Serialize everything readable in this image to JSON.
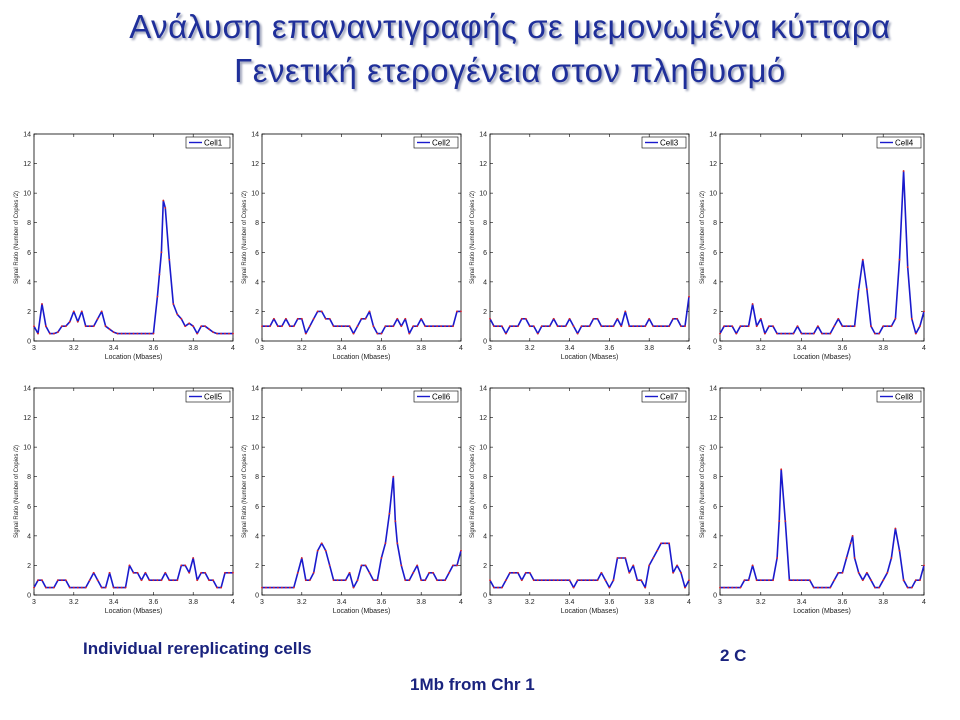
{
  "slide": {
    "title_line1": "Ανάλυση επαναντιγραφής σε μεμονωμένα κύτταρα",
    "title_line2": "Γενετική ετερογένεια στον πληθυσμό",
    "caption_cells": "Individual  rereplicating cells",
    "caption_2c": "2 C",
    "caption_region": "1Mb from Chr 1"
  },
  "colors": {
    "title": "#1f2f9a",
    "line": "#1a1acc",
    "marker": "#e02020",
    "caption": "#1a237e"
  },
  "chart_data": [
    {
      "type": "line",
      "legend": "Cell1",
      "xlabel": "Location (Mbases)",
      "ylabel": "Signal Ratio (Number of Copies /2)",
      "xlim": [
        3,
        4
      ],
      "ylim": [
        0,
        14
      ],
      "xticks": [
        "3",
        "3.2",
        "3.4",
        "3.6",
        "3.8",
        "4"
      ],
      "yticks": [
        "0",
        "2",
        "4",
        "6",
        "8",
        "10",
        "12",
        "14"
      ],
      "x": [
        3.0,
        3.02,
        3.04,
        3.06,
        3.08,
        3.1,
        3.12,
        3.14,
        3.16,
        3.18,
        3.2,
        3.22,
        3.24,
        3.26,
        3.28,
        3.3,
        3.32,
        3.34,
        3.36,
        3.38,
        3.4,
        3.42,
        3.44,
        3.46,
        3.48,
        3.5,
        3.52,
        3.54,
        3.56,
        3.58,
        3.6,
        3.62,
        3.63,
        3.64,
        3.65,
        3.66,
        3.68,
        3.7,
        3.72,
        3.74,
        3.76,
        3.78,
        3.8,
        3.82,
        3.84,
        3.86,
        3.88,
        3.9,
        3.92,
        3.94,
        3.96,
        3.98,
        4.0
      ],
      "y": [
        1.0,
        0.5,
        2.5,
        1.0,
        0.5,
        0.5,
        0.6,
        1.0,
        1.0,
        1.3,
        2.0,
        1.3,
        2.0,
        1.0,
        1.0,
        1.0,
        1.5,
        2.0,
        1.0,
        0.8,
        0.6,
        0.5,
        0.5,
        0.5,
        0.5,
        0.5,
        0.5,
        0.5,
        0.5,
        0.5,
        0.5,
        3.0,
        4.5,
        6.0,
        9.5,
        9.0,
        5.5,
        2.5,
        1.8,
        1.5,
        1.0,
        1.2,
        1.0,
        0.5,
        1.0,
        1.0,
        0.8,
        0.6,
        0.5,
        0.5,
        0.5,
        0.5,
        0.5
      ]
    },
    {
      "type": "line",
      "legend": "Cell2",
      "xlabel": "Location (Mbases)",
      "ylabel": "Signal Ratio (Number of Copies /2)",
      "xlim": [
        3,
        4
      ],
      "ylim": [
        0,
        14
      ],
      "xticks": [
        "3",
        "3.2",
        "3.4",
        "3.6",
        "3.8",
        "4"
      ],
      "yticks": [
        "0",
        "2",
        "4",
        "6",
        "8",
        "10",
        "12",
        "14"
      ],
      "x": [
        3.0,
        3.02,
        3.04,
        3.06,
        3.08,
        3.1,
        3.12,
        3.14,
        3.16,
        3.18,
        3.2,
        3.22,
        3.24,
        3.26,
        3.28,
        3.3,
        3.32,
        3.34,
        3.36,
        3.38,
        3.4,
        3.42,
        3.44,
        3.46,
        3.48,
        3.5,
        3.52,
        3.54,
        3.56,
        3.58,
        3.6,
        3.62,
        3.64,
        3.66,
        3.68,
        3.7,
        3.72,
        3.74,
        3.76,
        3.78,
        3.8,
        3.82,
        3.84,
        3.86,
        3.88,
        3.9,
        3.92,
        3.94,
        3.96,
        3.98,
        4.0
      ],
      "y": [
        1.0,
        1.0,
        1.0,
        1.5,
        1.0,
        1.0,
        1.5,
        1.0,
        1.0,
        1.5,
        1.5,
        0.5,
        1.0,
        1.5,
        2.0,
        2.0,
        1.5,
        1.5,
        1.0,
        1.0,
        1.0,
        1.0,
        1.0,
        0.5,
        1.0,
        1.5,
        1.5,
        2.0,
        1.0,
        0.5,
        0.5,
        1.0,
        1.0,
        1.0,
        1.5,
        1.0,
        1.5,
        0.5,
        1.0,
        1.0,
        1.5,
        1.0,
        1.0,
        1.0,
        1.0,
        1.0,
        1.0,
        1.0,
        1.0,
        2.0,
        2.0
      ]
    },
    {
      "type": "line",
      "legend": "Cell3",
      "xlabel": "Location (Mbases)",
      "ylabel": "Signal Ratio (Number of Copies /2)",
      "xlim": [
        3,
        4
      ],
      "ylim": [
        0,
        14
      ],
      "xticks": [
        "3",
        "3.2",
        "3.4",
        "3.6",
        "3.8",
        "4"
      ],
      "yticks": [
        "0",
        "2",
        "4",
        "6",
        "8",
        "10",
        "12",
        "14"
      ],
      "x": [
        3.0,
        3.02,
        3.04,
        3.06,
        3.08,
        3.1,
        3.12,
        3.14,
        3.16,
        3.18,
        3.2,
        3.22,
        3.24,
        3.26,
        3.28,
        3.3,
        3.32,
        3.34,
        3.36,
        3.38,
        3.4,
        3.42,
        3.44,
        3.46,
        3.48,
        3.5,
        3.52,
        3.54,
        3.56,
        3.58,
        3.6,
        3.62,
        3.64,
        3.66,
        3.68,
        3.7,
        3.72,
        3.74,
        3.76,
        3.78,
        3.8,
        3.82,
        3.84,
        3.86,
        3.88,
        3.9,
        3.92,
        3.94,
        3.96,
        3.98,
        4.0
      ],
      "y": [
        1.5,
        1.0,
        1.0,
        1.0,
        0.5,
        1.0,
        1.0,
        1.0,
        1.5,
        1.5,
        1.0,
        1.0,
        0.5,
        1.0,
        1.0,
        1.0,
        1.5,
        1.0,
        1.0,
        1.0,
        1.5,
        1.0,
        0.5,
        1.0,
        1.0,
        1.0,
        1.5,
        1.5,
        1.0,
        1.0,
        1.0,
        1.0,
        1.5,
        1.0,
        2.0,
        1.0,
        1.0,
        1.0,
        1.0,
        1.0,
        1.5,
        1.0,
        1.0,
        1.0,
        1.0,
        1.0,
        1.5,
        1.5,
        1.0,
        1.0,
        3.0
      ]
    },
    {
      "type": "line",
      "legend": "Cell4",
      "xlabel": "Location (Mbases)",
      "ylabel": "Signal Ratio (Number of Copies /2)",
      "xlim": [
        3,
        4
      ],
      "ylim": [
        0,
        14
      ],
      "xticks": [
        "3",
        "3.2",
        "3.4",
        "3.6",
        "3.8",
        "4"
      ],
      "yticks": [
        "0",
        "2",
        "4",
        "6",
        "8",
        "10",
        "12",
        "14"
      ],
      "x": [
        3.0,
        3.02,
        3.04,
        3.06,
        3.08,
        3.1,
        3.12,
        3.14,
        3.16,
        3.18,
        3.2,
        3.22,
        3.24,
        3.26,
        3.28,
        3.3,
        3.32,
        3.34,
        3.36,
        3.38,
        3.4,
        3.42,
        3.44,
        3.46,
        3.48,
        3.5,
        3.52,
        3.54,
        3.56,
        3.58,
        3.6,
        3.62,
        3.64,
        3.66,
        3.68,
        3.7,
        3.72,
        3.74,
        3.76,
        3.78,
        3.8,
        3.82,
        3.84,
        3.86,
        3.88,
        3.9,
        3.92,
        3.94,
        3.96,
        3.98,
        4.0
      ],
      "y": [
        0.5,
        1.0,
        1.0,
        1.0,
        0.5,
        1.0,
        1.0,
        1.0,
        2.5,
        1.0,
        1.5,
        0.5,
        1.0,
        1.0,
        0.5,
        0.5,
        0.5,
        0.5,
        0.5,
        1.0,
        0.5,
        0.5,
        0.5,
        0.5,
        1.0,
        0.5,
        0.5,
        0.5,
        1.0,
        1.5,
        1.0,
        1.0,
        1.0,
        1.0,
        3.5,
        5.5,
        3.5,
        1.0,
        0.5,
        0.5,
        1.0,
        1.0,
        1.0,
        1.5,
        5.5,
        11.5,
        5.0,
        1.5,
        0.5,
        1.0,
        2.0
      ]
    },
    {
      "type": "line",
      "legend": "Cell5",
      "xlabel": "Location (Mbases)",
      "ylabel": "Signal Ratio (Number of Copies /2)",
      "xlim": [
        3,
        4
      ],
      "ylim": [
        0,
        14
      ],
      "xticks": [
        "3",
        "3.2",
        "3.4",
        "3.6",
        "3.8",
        "4"
      ],
      "yticks": [
        "0",
        "2",
        "4",
        "6",
        "8",
        "10",
        "12",
        "14"
      ],
      "x": [
        3.0,
        3.02,
        3.04,
        3.06,
        3.08,
        3.1,
        3.12,
        3.14,
        3.16,
        3.18,
        3.2,
        3.22,
        3.24,
        3.26,
        3.28,
        3.3,
        3.32,
        3.34,
        3.36,
        3.38,
        3.4,
        3.42,
        3.44,
        3.46,
        3.48,
        3.5,
        3.52,
        3.54,
        3.56,
        3.58,
        3.6,
        3.62,
        3.64,
        3.66,
        3.68,
        3.7,
        3.72,
        3.74,
        3.76,
        3.78,
        3.8,
        3.82,
        3.84,
        3.86,
        3.88,
        3.9,
        3.92,
        3.94,
        3.96,
        3.98,
        4.0
      ],
      "y": [
        0.5,
        1.0,
        1.0,
        0.5,
        0.5,
        0.5,
        1.0,
        1.0,
        1.0,
        0.5,
        0.5,
        0.5,
        0.5,
        0.5,
        1.0,
        1.5,
        1.0,
        0.5,
        0.5,
        1.5,
        0.5,
        0.5,
        0.5,
        0.5,
        2.0,
        1.5,
        1.5,
        1.0,
        1.5,
        1.0,
        1.0,
        1.0,
        1.0,
        1.5,
        1.0,
        1.0,
        1.0,
        2.0,
        2.0,
        1.5,
        2.5,
        1.0,
        1.5,
        1.5,
        1.0,
        1.0,
        0.5,
        0.5,
        1.5,
        1.5,
        1.5
      ]
    },
    {
      "type": "line",
      "legend": "Cell6",
      "xlabel": "Location (Mbases)",
      "ylabel": "Signal Ratio (Number of Copies /2)",
      "xlim": [
        3,
        4
      ],
      "ylim": [
        0,
        14
      ],
      "xticks": [
        "3",
        "3.2",
        "3.4",
        "3.6",
        "3.8",
        "4"
      ],
      "yticks": [
        "0",
        "2",
        "4",
        "6",
        "8",
        "10",
        "12",
        "14"
      ],
      "x": [
        3.0,
        3.02,
        3.04,
        3.06,
        3.08,
        3.1,
        3.12,
        3.14,
        3.16,
        3.18,
        3.2,
        3.22,
        3.24,
        3.26,
        3.28,
        3.3,
        3.32,
        3.34,
        3.36,
        3.38,
        3.4,
        3.42,
        3.44,
        3.46,
        3.48,
        3.5,
        3.52,
        3.54,
        3.56,
        3.58,
        3.6,
        3.62,
        3.64,
        3.66,
        3.67,
        3.68,
        3.7,
        3.72,
        3.74,
        3.76,
        3.78,
        3.8,
        3.82,
        3.84,
        3.86,
        3.88,
        3.9,
        3.92,
        3.94,
        3.96,
        3.98,
        4.0
      ],
      "y": [
        0.5,
        0.5,
        0.5,
        0.5,
        0.5,
        0.5,
        0.5,
        0.5,
        0.5,
        1.5,
        2.5,
        1.0,
        1.0,
        1.5,
        3.0,
        3.5,
        3.0,
        2.0,
        1.0,
        1.0,
        1.0,
        1.0,
        1.5,
        0.5,
        1.0,
        2.0,
        2.0,
        1.5,
        1.0,
        1.0,
        2.5,
        3.5,
        5.5,
        8.0,
        5.0,
        3.5,
        2.0,
        1.0,
        1.0,
        1.5,
        2.0,
        1.0,
        1.0,
        1.5,
        1.5,
        1.0,
        1.0,
        1.0,
        1.5,
        2.0,
        2.0,
        3.0
      ]
    },
    {
      "type": "line",
      "legend": "Cell7",
      "xlabel": "Location (Mbases)",
      "ylabel": "Signal Ratio (Number of Copies /2)",
      "xlim": [
        3,
        4
      ],
      "ylim": [
        0,
        14
      ],
      "xticks": [
        "3",
        "3.2",
        "3.4",
        "3.6",
        "3.8",
        "4"
      ],
      "yticks": [
        "0",
        "2",
        "4",
        "6",
        "8",
        "10",
        "12",
        "14"
      ],
      "x": [
        3.0,
        3.02,
        3.04,
        3.06,
        3.08,
        3.1,
        3.12,
        3.14,
        3.16,
        3.18,
        3.2,
        3.22,
        3.24,
        3.26,
        3.28,
        3.3,
        3.32,
        3.34,
        3.36,
        3.38,
        3.4,
        3.42,
        3.44,
        3.46,
        3.48,
        3.5,
        3.52,
        3.54,
        3.56,
        3.58,
        3.6,
        3.62,
        3.64,
        3.66,
        3.68,
        3.7,
        3.72,
        3.74,
        3.76,
        3.78,
        3.8,
        3.82,
        3.84,
        3.86,
        3.88,
        3.9,
        3.92,
        3.94,
        3.96,
        3.98,
        4.0
      ],
      "y": [
        1.0,
        0.5,
        0.5,
        0.5,
        1.0,
        1.5,
        1.5,
        1.5,
        1.0,
        1.5,
        1.5,
        1.0,
        1.0,
        1.0,
        1.0,
        1.0,
        1.0,
        1.0,
        1.0,
        1.0,
        1.0,
        0.5,
        1.0,
        1.0,
        1.0,
        1.0,
        1.0,
        1.0,
        1.5,
        1.0,
        0.5,
        1.0,
        2.5,
        2.5,
        2.5,
        1.5,
        2.0,
        1.0,
        1.0,
        0.5,
        2.0,
        2.5,
        3.0,
        3.5,
        3.5,
        3.5,
        1.5,
        2.0,
        1.5,
        0.5,
        1.0
      ]
    },
    {
      "type": "line",
      "legend": "Cell8",
      "xlabel": "Location (Mbases)",
      "ylabel": "Signal Ratio (Number of Copies /2)",
      "xlim": [
        3,
        4
      ],
      "ylim": [
        0,
        14
      ],
      "xticks": [
        "3",
        "3.2",
        "3.4",
        "3.6",
        "3.8",
        "4"
      ],
      "yticks": [
        "0",
        "2",
        "4",
        "6",
        "8",
        "10",
        "12",
        "14"
      ],
      "x": [
        3.0,
        3.02,
        3.04,
        3.06,
        3.08,
        3.1,
        3.12,
        3.14,
        3.16,
        3.18,
        3.2,
        3.22,
        3.24,
        3.26,
        3.28,
        3.29,
        3.3,
        3.32,
        3.34,
        3.36,
        3.38,
        3.4,
        3.42,
        3.44,
        3.46,
        3.48,
        3.5,
        3.52,
        3.54,
        3.56,
        3.58,
        3.6,
        3.62,
        3.64,
        3.65,
        3.66,
        3.68,
        3.7,
        3.72,
        3.74,
        3.76,
        3.78,
        3.8,
        3.82,
        3.84,
        3.86,
        3.88,
        3.9,
        3.92,
        3.94,
        3.96,
        3.98,
        4.0
      ],
      "y": [
        0.5,
        0.5,
        0.5,
        0.5,
        0.5,
        0.5,
        1.0,
        1.0,
        2.0,
        1.0,
        1.0,
        1.0,
        1.0,
        1.0,
        2.5,
        5.0,
        8.5,
        5.0,
        1.0,
        1.0,
        1.0,
        1.0,
        1.0,
        1.0,
        0.5,
        0.5,
        0.5,
        0.5,
        0.5,
        1.0,
        1.5,
        1.5,
        2.5,
        3.5,
        4.0,
        2.5,
        1.5,
        1.0,
        1.5,
        1.0,
        0.5,
        0.5,
        1.0,
        1.5,
        2.5,
        4.5,
        3.0,
        1.0,
        0.5,
        0.5,
        1.0,
        1.0,
        2.0
      ]
    }
  ]
}
